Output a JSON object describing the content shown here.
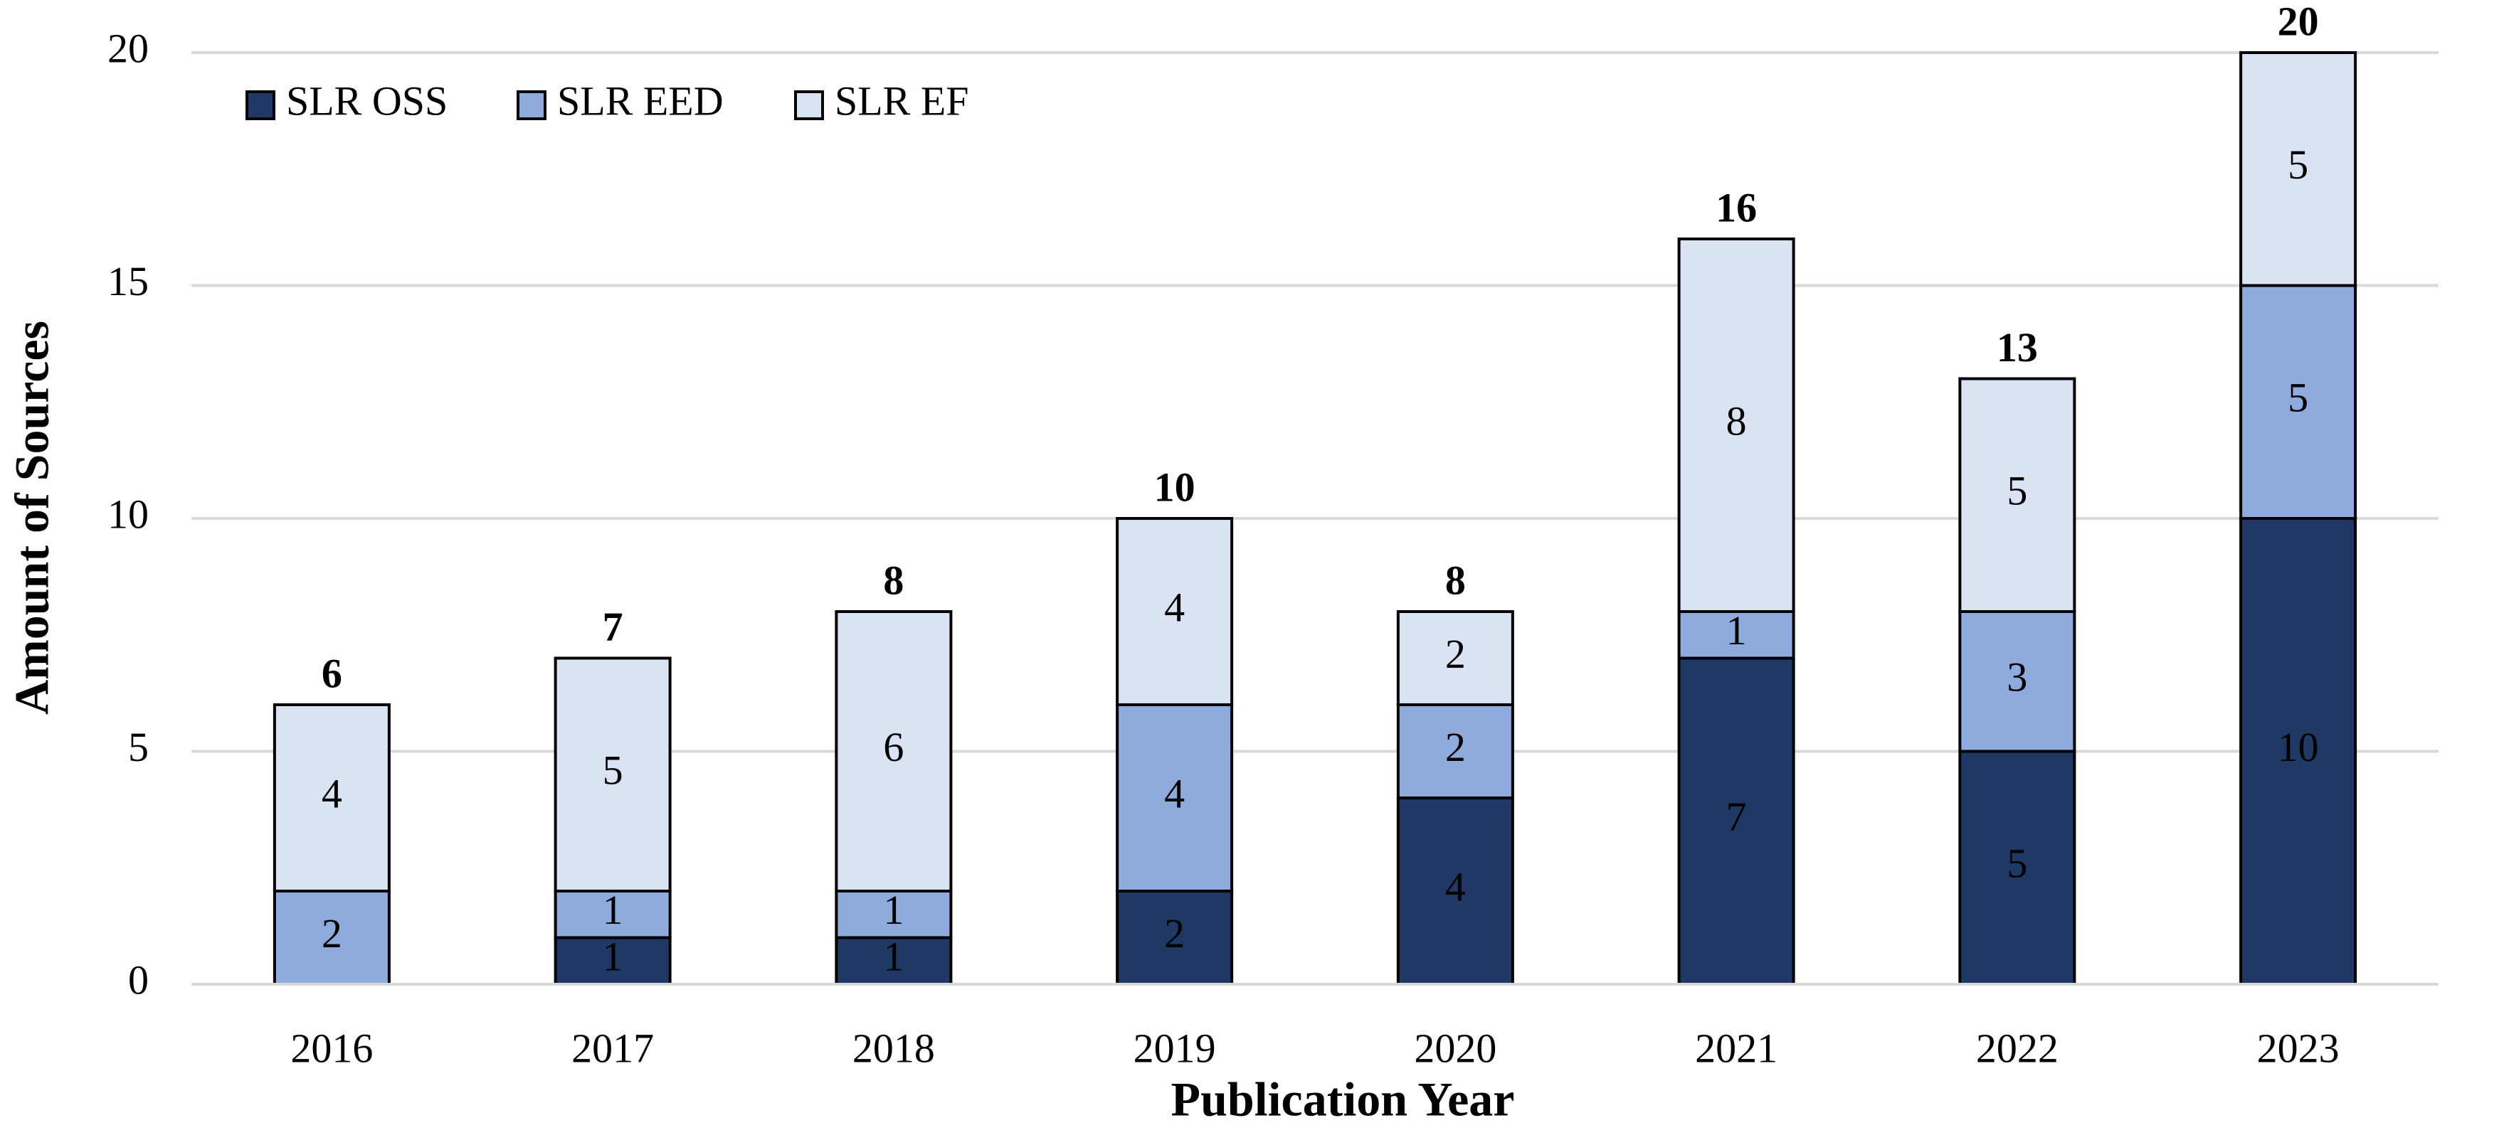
{
  "chart_data": {
    "type": "stacked-bar",
    "x_label": "Publication Year",
    "y_label": "Amount of Sources",
    "categories": [
      "2016",
      "2017",
      "2018",
      "2019",
      "2020",
      "2021",
      "2022",
      "2023"
    ],
    "series": [
      {
        "name": "SLR OSS",
        "color": "#203864",
        "values": [
          0,
          1,
          1,
          2,
          4,
          7,
          5,
          10
        ]
      },
      {
        "name": "SLR EED",
        "color": "#8faadc",
        "values": [
          2,
          1,
          1,
          4,
          2,
          1,
          3,
          5
        ]
      },
      {
        "name": "SLR EF",
        "color": "#dae3f3",
        "values": [
          4,
          5,
          6,
          4,
          2,
          8,
          5,
          5
        ]
      }
    ],
    "totals": [
      6,
      7,
      8,
      10,
      8,
      16,
      13,
      20
    ],
    "ylim": [
      0,
      20
    ],
    "yticks": [
      0,
      5,
      10,
      15,
      20
    ],
    "grid": true,
    "legend": "top-left"
  }
}
